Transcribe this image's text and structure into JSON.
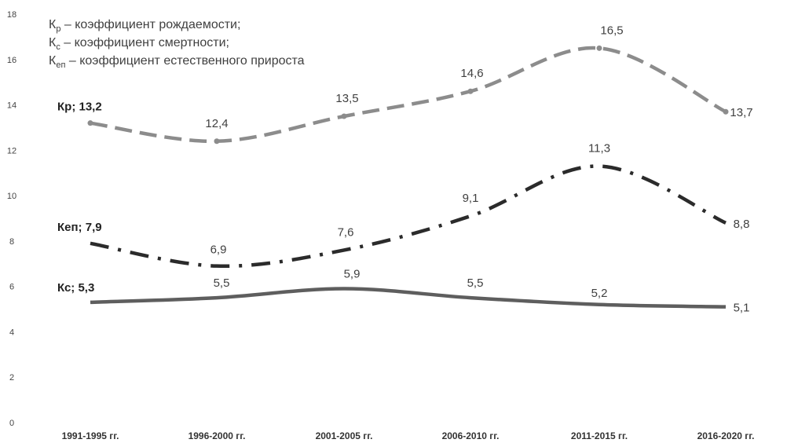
{
  "chart_data": {
    "type": "line",
    "categories": [
      "1991-1995 гг.",
      "1996-2000 гг.",
      "2001-2005 гг.",
      "2006-2010 гг.",
      "2011-2015 гг.",
      "2016-2020 гг."
    ],
    "ylim": [
      0,
      18
    ],
    "yticks": [
      "0",
      "2",
      "4",
      "6",
      "8",
      "10",
      "12",
      "14",
      "16",
      "18"
    ],
    "grid": false,
    "series": [
      {
        "name": "Кр",
        "values": [
          13.2,
          12.4,
          13.5,
          14.6,
          16.5,
          13.7
        ],
        "value_labels": [
          "Кр; 13,2",
          "12,4",
          "13,5",
          "14,6",
          "16,5",
          "13,7"
        ],
        "style": "dashed",
        "color": "#8c8c8c"
      },
      {
        "name": "Кеп",
        "values": [
          7.9,
          6.9,
          7.6,
          9.1,
          11.3,
          8.8
        ],
        "value_labels": [
          "Кеп; 7,9",
          "6,9",
          "7,6",
          "9,1",
          "11,3",
          "8,8"
        ],
        "style": "dashdot",
        "color": "#2b2b2b"
      },
      {
        "name": "Кс",
        "values": [
          5.3,
          5.5,
          5.9,
          5.5,
          5.2,
          5.1
        ],
        "value_labels": [
          "Кс; 5,3",
          "5,5",
          "5,9",
          "5,5",
          "5,2",
          "5,1"
        ],
        "style": "solid",
        "color": "#5e5e5e"
      }
    ],
    "legend": {
      "placement": "top-left",
      "items": [
        {
          "symbol": "К",
          "sub": "р",
          "text": " – коэффициент рождаемости;"
        },
        {
          "symbol": "К",
          "sub": "с",
          "text": " – коэффициент смертности;"
        },
        {
          "symbol": "К",
          "sub": "еп",
          "text": " – коэффициент естественного прироста"
        }
      ]
    }
  }
}
